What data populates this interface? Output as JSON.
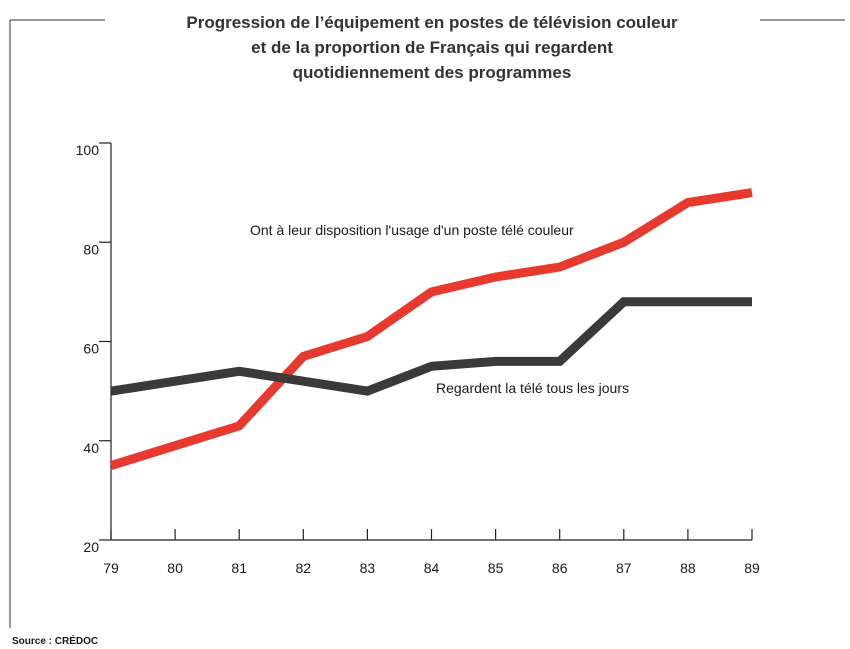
{
  "chart_data": {
    "type": "line",
    "title": [
      "Progression de l’équipement en postes de télévision couleur",
      "et de la proportion de Français qui regardent",
      "quotidiennement des programmes"
    ],
    "categories": [
      "79",
      "80",
      "81",
      "82",
      "83",
      "84",
      "85",
      "86",
      "87",
      "88",
      "89"
    ],
    "series": [
      {
        "name": "Ont à leur disposition l'usage d'un poste télé couleur",
        "color": "#e8392f",
        "values": [
          35,
          39,
          43,
          57,
          61,
          70,
          73,
          75,
          80,
          88,
          90
        ]
      },
      {
        "name": "Regardent la télé tous les jours",
        "color": "#3a3a3a",
        "values": [
          50,
          52,
          54,
          52,
          50,
          55,
          56,
          56,
          68,
          68,
          68
        ]
      }
    ],
    "ylim": [
      20,
      100
    ],
    "yticks": [
      20,
      40,
      60,
      80,
      100
    ],
    "source": "Source : CRÉDOC"
  }
}
